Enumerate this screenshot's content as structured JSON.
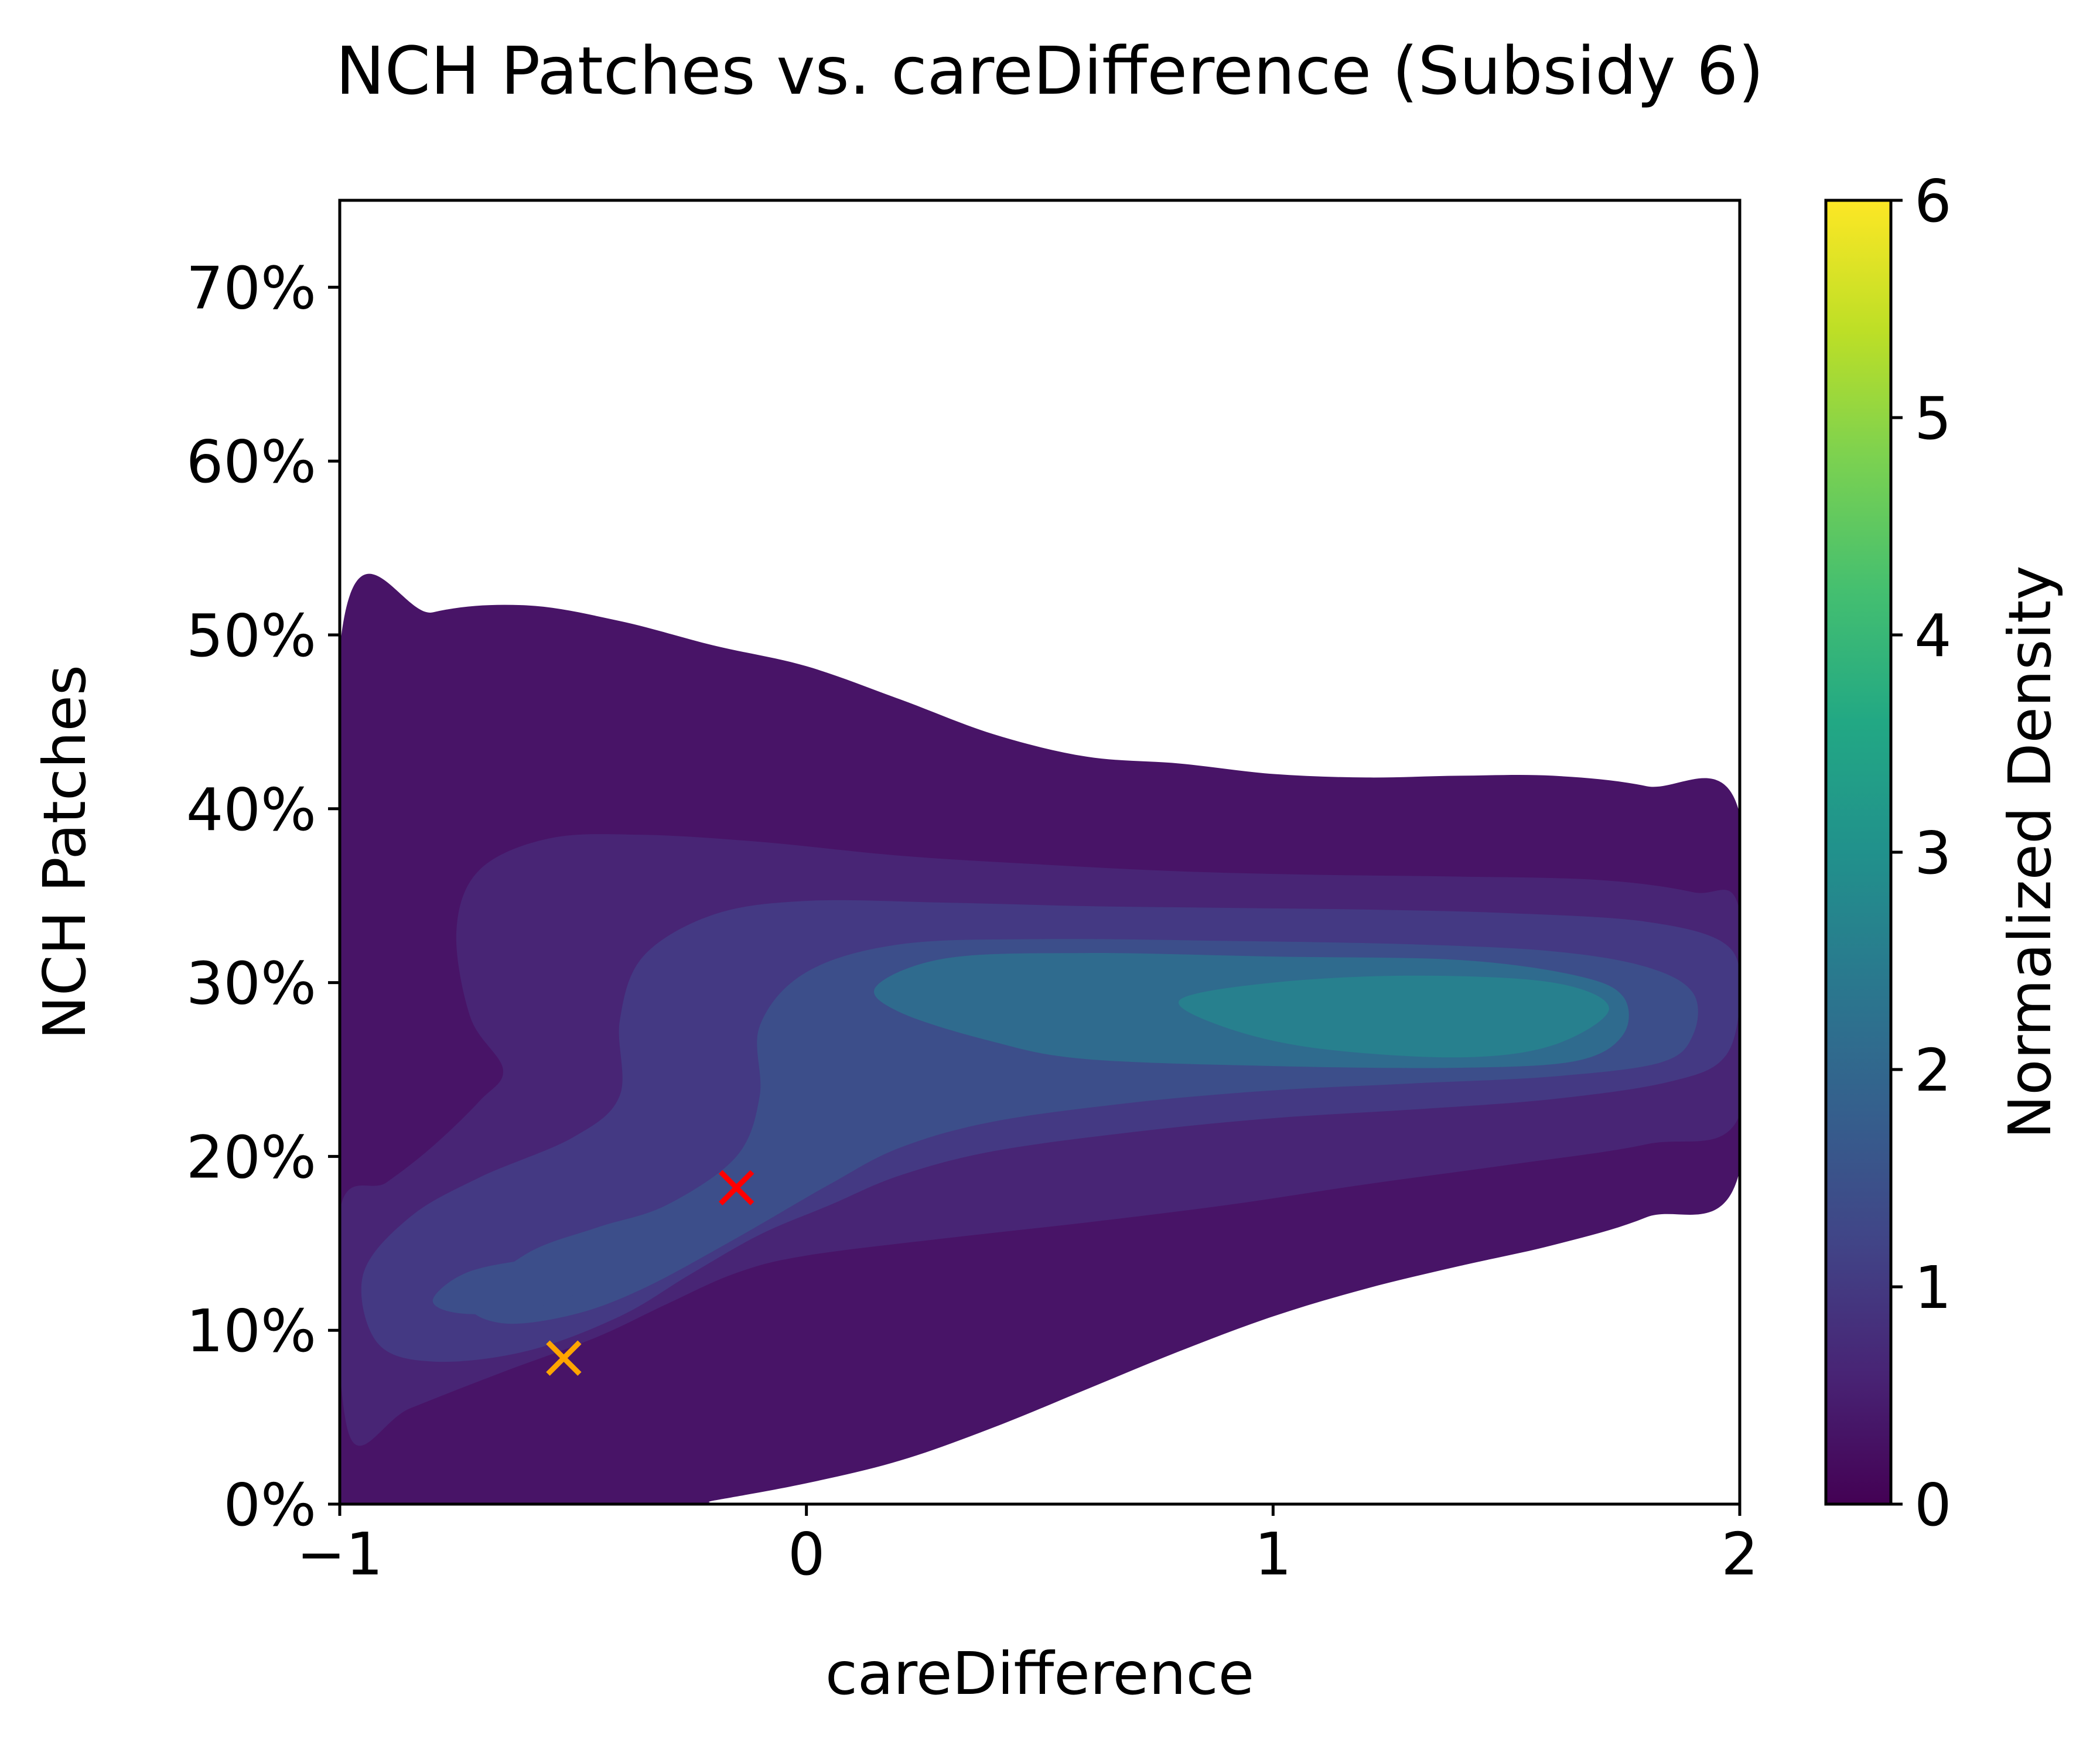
{
  "chart_data": {
    "type": "heatmap",
    "subtype": "filled-kde-contour",
    "title": "NCH Patches vs. careDifference (Subsidy 6)",
    "xlabel": "careDifference",
    "ylabel": "NCH Patches",
    "xlim": [
      -1,
      2
    ],
    "ylim": [
      0,
      75
    ],
    "x_ticks": [
      -1,
      0,
      1,
      2
    ],
    "x_tick_labels": [
      "−1",
      "0",
      "1",
      "2"
    ],
    "y_ticks": [
      0,
      10,
      20,
      30,
      40,
      50,
      60,
      70
    ],
    "y_tick_labels": [
      "0%",
      "10%",
      "20%",
      "30%",
      "40%",
      "50%",
      "60%",
      "70%"
    ],
    "grid": false,
    "colormap": "viridis",
    "colorbar": {
      "label": "Normalized Density",
      "range": [
        0,
        6
      ],
      "ticks": [
        0,
        1,
        2,
        3,
        4,
        5,
        6
      ],
      "tick_labels": [
        "0",
        "1",
        "2",
        "3",
        "4",
        "5",
        "6"
      ]
    },
    "contour_levels": [
      {
        "level": 0.25,
        "color": "#481467",
        "outline": [
          [
            -1,
            49.2
          ],
          [
            -0.8,
            51.3
          ],
          [
            -0.6,
            51.7
          ],
          [
            -0.4,
            50.8
          ],
          [
            -0.2,
            49.4
          ],
          [
            0,
            48.2
          ],
          [
            0.2,
            46.3
          ],
          [
            0.4,
            44.3
          ],
          [
            0.6,
            43
          ],
          [
            0.8,
            42.6
          ],
          [
            1,
            42
          ],
          [
            1.2,
            41.8
          ],
          [
            1.4,
            41.9
          ],
          [
            1.6,
            41.9
          ],
          [
            1.8,
            41.3
          ],
          [
            2,
            39.7
          ],
          [
            2,
            19.2
          ],
          [
            1.8,
            16.5
          ],
          [
            1.6,
            14.9
          ],
          [
            1.4,
            13.7
          ],
          [
            1.2,
            12.4
          ],
          [
            1,
            10.8
          ],
          [
            0.8,
            8.8
          ],
          [
            0.6,
            6.6
          ],
          [
            0.4,
            4.4
          ],
          [
            0.2,
            2.5
          ],
          [
            0,
            1.2
          ],
          [
            -0.2,
            0.2
          ],
          [
            -0.25,
            0
          ],
          [
            -1,
            0
          ]
        ]
      },
      {
        "level": 0.75,
        "color": "#482575",
        "outline": [
          [
            -1,
            16.8
          ],
          [
            -0.9,
            18.5
          ],
          [
            -0.8,
            20.6
          ],
          [
            -0.7,
            23.2
          ],
          [
            -0.65,
            25
          ],
          [
            -0.72,
            28
          ],
          [
            -0.75,
            33
          ],
          [
            -0.7,
            36.5
          ],
          [
            -0.55,
            38.3
          ],
          [
            -0.35,
            38.5
          ],
          [
            -0.1,
            38.1
          ],
          [
            0.2,
            37.3
          ],
          [
            0.5,
            36.8
          ],
          [
            0.8,
            36.4
          ],
          [
            1.1,
            36.2
          ],
          [
            1.4,
            36.1
          ],
          [
            1.7,
            35.9
          ],
          [
            1.9,
            35.2
          ],
          [
            2,
            34.1
          ],
          [
            2,
            22.4
          ],
          [
            1.8,
            20.7
          ],
          [
            1.5,
            19.5
          ],
          [
            1.2,
            18.4
          ],
          [
            0.9,
            17.2
          ],
          [
            0.6,
            16.2
          ],
          [
            0.3,
            15.3
          ],
          [
            0,
            14.3
          ],
          [
            -0.15,
            13.3
          ],
          [
            -0.3,
            11.5
          ],
          [
            -0.45,
            9.6
          ],
          [
            -0.65,
            7.6
          ],
          [
            -0.85,
            5.5
          ],
          [
            -0.98,
            4
          ]
        ]
      },
      {
        "level": 1.0,
        "color": "#443983",
        "outline": [
          [
            -0.95,
            13.2
          ],
          [
            -0.85,
            16.5
          ],
          [
            -0.7,
            18.8
          ],
          [
            -0.5,
            21.1
          ],
          [
            -0.4,
            23.5
          ],
          [
            -0.4,
            27.8
          ],
          [
            -0.35,
            31.5
          ],
          [
            -0.2,
            33.9
          ],
          [
            0,
            34.7
          ],
          [
            0.3,
            34.6
          ],
          [
            0.6,
            34.4
          ],
          [
            0.9,
            34.3
          ],
          [
            1.2,
            34.2
          ],
          [
            1.5,
            34
          ],
          [
            1.8,
            33.5
          ],
          [
            1.97,
            32.2
          ],
          [
            2,
            29.5
          ],
          [
            1.97,
            25.8
          ],
          [
            1.85,
            24.3
          ],
          [
            1.6,
            23.3
          ],
          [
            1.3,
            22.7
          ],
          [
            1,
            22.2
          ],
          [
            0.7,
            21.4
          ],
          [
            0.4,
            20.3
          ],
          [
            0.2,
            18.9
          ],
          [
            0.05,
            17.2
          ],
          [
            -0.1,
            15.5
          ],
          [
            -0.25,
            13.2
          ],
          [
            -0.4,
            10.8
          ],
          [
            -0.6,
            8.8
          ],
          [
            -0.8,
            8.2
          ],
          [
            -0.92,
            9.3
          ]
        ]
      },
      {
        "level": 1.5,
        "color": "#3c4e8a",
        "outline": [
          [
            -0.72,
            11.6
          ],
          [
            -0.6,
            14.4
          ],
          [
            -0.45,
            15.9
          ],
          [
            -0.3,
            17.2
          ],
          [
            -0.15,
            20
          ],
          [
            -0.1,
            23.5
          ],
          [
            -0.1,
            27.5
          ],
          [
            0,
            30.6
          ],
          [
            0.2,
            32.2
          ],
          [
            0.5,
            32.5
          ],
          [
            0.9,
            32.4
          ],
          [
            1.3,
            32.2
          ],
          [
            1.6,
            31.8
          ],
          [
            1.8,
            30.9
          ],
          [
            1.9,
            29.4
          ],
          [
            1.9,
            27
          ],
          [
            1.83,
            25.4
          ],
          [
            1.6,
            24.6
          ],
          [
            1.3,
            24.2
          ],
          [
            1,
            23.8
          ],
          [
            0.7,
            23.1
          ],
          [
            0.4,
            22
          ],
          [
            0.2,
            20.5
          ],
          [
            0.05,
            18.4
          ],
          [
            -0.15,
            15.3
          ],
          [
            -0.35,
            12.4
          ],
          [
            -0.5,
            10.9
          ],
          [
            -0.65,
            10.4
          ]
        ]
      },
      {
        "level": 2.0,
        "color": "#2f6b8e",
        "outline": [
          [
            0.15,
            29.8
          ],
          [
            0.3,
            31.4
          ],
          [
            0.6,
            31.7
          ],
          [
            1,
            31.5
          ],
          [
            1.4,
            31.3
          ],
          [
            1.65,
            30.4
          ],
          [
            1.75,
            29.2
          ],
          [
            1.75,
            27
          ],
          [
            1.65,
            25.5
          ],
          [
            1.4,
            25.1
          ],
          [
            1,
            25.2
          ],
          [
            0.6,
            25.6
          ],
          [
            0.4,
            26.6
          ],
          [
            0.2,
            28.3
          ]
        ]
      },
      {
        "level": 2.5,
        "color": "#27808e",
        "outline": [
          [
            0.8,
            29
          ],
          [
            1,
            30
          ],
          [
            1.3,
            30.4
          ],
          [
            1.6,
            30
          ],
          [
            1.72,
            28.5
          ],
          [
            1.6,
            26.4
          ],
          [
            1.4,
            25.7
          ],
          [
            1.1,
            26.2
          ],
          [
            0.9,
            27.4
          ]
        ]
      },
      {
        "level": 1.5,
        "color": "#3c4e8a",
        "outline": [
          [
            -0.8,
            11.8
          ],
          [
            -0.72,
            13.4
          ],
          [
            -0.55,
            14.2
          ],
          [
            -0.45,
            14.1
          ],
          [
            -0.48,
            12.3
          ],
          [
            -0.62,
            11.1
          ],
          [
            -0.75,
            11
          ]
        ]
      }
    ],
    "markers": [
      {
        "x": -0.52,
        "y": 8.4,
        "symbol": "x",
        "color": "#ffa500"
      },
      {
        "x": -0.15,
        "y": 18.2,
        "symbol": "x",
        "color": "#ff0000"
      }
    ]
  }
}
